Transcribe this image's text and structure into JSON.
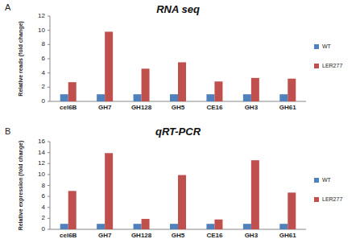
{
  "chart_data": [
    {
      "type": "bar",
      "title": "RNA seq",
      "annotations": [
        "A"
      ],
      "y_label": "Relative reads (fold change)",
      "categories": [
        "cel6B",
        "GH7",
        "GH128",
        "GH5",
        "CE16",
        "GH3",
        "GH61"
      ],
      "series": [
        {
          "name": "WT",
          "color": "#4f81bd",
          "values": [
            1,
            1,
            1,
            1,
            1,
            1,
            1
          ]
        },
        {
          "name": "LER277",
          "color": "#c0504d",
          "values": [
            2.7,
            9.8,
            4.6,
            5.5,
            2.8,
            3.3,
            3.2
          ]
        }
      ],
      "ylim": [
        0,
        12
      ],
      "yticks": [
        0,
        2,
        4,
        6,
        8,
        10,
        12
      ],
      "legend": "right",
      "grid": false
    },
    {
      "type": "bar",
      "title": "qRT-PCR",
      "annotations": [
        "B"
      ],
      "y_label": "Relative expression (fold change)",
      "categories": [
        "cel6B",
        "GH7",
        "GH128",
        "GH5",
        "CE16",
        "GH3",
        "GH61"
      ],
      "series": [
        {
          "name": "WT",
          "color": "#4f81bd",
          "values": [
            1,
            1,
            1,
            1,
            1,
            1,
            1
          ]
        },
        {
          "name": "LER277",
          "color": "#c0504d",
          "values": [
            7.0,
            13.9,
            1.9,
            9.9,
            1.8,
            12.6,
            6.7
          ]
        }
      ],
      "ylim": [
        0,
        16
      ],
      "yticks": [
        0,
        2,
        4,
        6,
        8,
        10,
        12,
        14,
        16
      ],
      "legend": "right",
      "grid": false
    }
  ]
}
